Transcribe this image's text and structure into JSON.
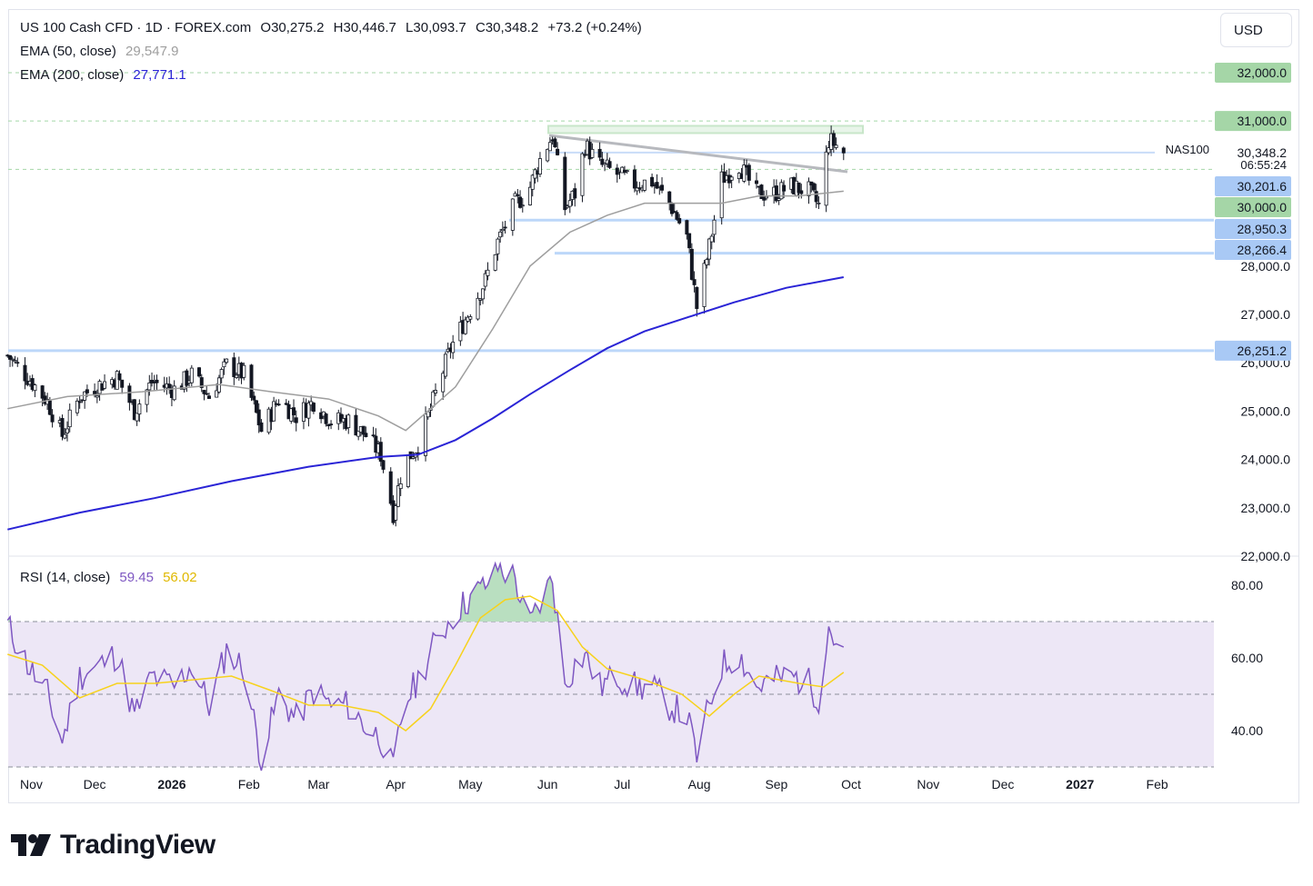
{
  "header": {
    "symbol": "US 100 Cash CFD · 1D · FOREX.com",
    "open": "O30,275.2",
    "high": "H30,446.7",
    "low": "L30,093.7",
    "close": "C30,348.2",
    "change": "+73.2 (+0.24%)"
  },
  "indicators": {
    "ema50_label": "EMA (50, close)",
    "ema50_value": "29,547.9",
    "ema200_label": "EMA (200, close)",
    "ema200_value": "27,771.1",
    "rsi_label": "RSI (14, close)",
    "rsi_value": "59.45",
    "rsi_ma_value": "56.02"
  },
  "currency_button": "USD",
  "brand": "TradingView",
  "colors": {
    "up": "#131722",
    "down": "#131722",
    "ema50": "#9e9e9e",
    "ema200": "#2a24d6",
    "rsi": "#7e57c2",
    "rsi_ma": "#f7d21c",
    "support_line": "#bcd7f9",
    "resistance_box": "#c8e6c9",
    "tag_blue": "#a9c9f5",
    "tag_green": "#a5d6a7",
    "rsi_band": "#ede7f6"
  },
  "chart_data": [
    {
      "type": "candlestick",
      "title": "US 100 Cash CFD · 1D · FOREX.com",
      "ylim": [
        22000,
        32300
      ],
      "y_ticks": [
        "32,000.0",
        "31,000.0",
        "27,000.0",
        "25,000.0",
        "24,000.0",
        "23,000.0",
        "22,000.0"
      ],
      "x_labels": [
        "Nov",
        "Dec",
        "2026",
        "Feb",
        "Mar",
        "Apr",
        "May",
        "Jun",
        "Jul",
        "Aug",
        "Sep",
        "Oct",
        "Nov",
        "Dec",
        "2027",
        "Feb"
      ],
      "close_points": [
        [
          "2025-10-27",
          26150
        ],
        [
          "2025-11-05",
          25650
        ],
        [
          "2025-11-12",
          25200
        ],
        [
          "2025-11-18",
          24500
        ],
        [
          "2025-11-25",
          25300
        ],
        [
          "2025-12-03",
          25550
        ],
        [
          "2025-12-10",
          25700
        ],
        [
          "2025-12-17",
          25000
        ],
        [
          "2025-12-24",
          25600
        ],
        [
          "2026-01-02",
          25450
        ],
        [
          "2026-01-09",
          25750
        ],
        [
          "2026-01-16",
          25300
        ],
        [
          "2026-01-23",
          25950
        ],
        [
          "2026-01-30",
          25750
        ],
        [
          "2026-02-06",
          24600
        ],
        [
          "2026-02-13",
          25250
        ],
        [
          "2026-02-20",
          24900
        ],
        [
          "2026-02-27",
          25200
        ],
        [
          "2026-03-06",
          24800
        ],
        [
          "2026-03-13",
          24800
        ],
        [
          "2026-03-20",
          24500
        ],
        [
          "2026-03-26",
          24100
        ],
        [
          "2026-03-31",
          22900
        ],
        [
          "2026-04-04",
          23900
        ],
        [
          "2026-04-10",
          24300
        ],
        [
          "2026-04-16",
          25200
        ],
        [
          "2026-04-23",
          26300
        ],
        [
          "2026-04-30",
          27000
        ],
        [
          "2026-05-07",
          27700
        ],
        [
          "2026-05-12",
          28500
        ],
        [
          "2026-05-19",
          29300
        ],
        [
          "2026-05-24",
          29500
        ],
        [
          "2026-05-29",
          30200
        ],
        [
          "2026-06-03",
          30700
        ],
        [
          "2026-06-08",
          29200
        ],
        [
          "2026-06-12",
          29500
        ],
        [
          "2026-06-16",
          30500
        ],
        [
          "2026-06-22",
          30100
        ],
        [
          "2026-06-29",
          29900
        ],
        [
          "2026-07-06",
          29700
        ],
        [
          "2026-07-13",
          29750
        ],
        [
          "2026-07-20",
          29300
        ],
        [
          "2026-07-27",
          28600
        ],
        [
          "2026-07-31",
          27150
        ],
        [
          "2026-08-05",
          28400
        ],
        [
          "2026-08-10",
          29800
        ],
        [
          "2026-08-17",
          30100
        ],
        [
          "2026-08-24",
          29500
        ],
        [
          "2026-08-31",
          29500
        ],
        [
          "2026-09-07",
          29650
        ],
        [
          "2026-09-14",
          29550
        ],
        [
          "2026-09-18",
          29250
        ],
        [
          "2026-09-22",
          30600
        ],
        [
          "2026-09-25",
          30500
        ],
        [
          "2026-09-28",
          30348
        ]
      ],
      "ema50": [
        [
          "2025-10-27",
          25050
        ],
        [
          "2025-11-20",
          25300
        ],
        [
          "2025-12-20",
          25400
        ],
        [
          "2026-01-20",
          25550
        ],
        [
          "2026-02-10",
          25400
        ],
        [
          "2026-03-05",
          25250
        ],
        [
          "2026-03-25",
          24900
        ],
        [
          "2026-04-05",
          24600
        ],
        [
          "2026-04-25",
          25500
        ],
        [
          "2026-05-10",
          26700
        ],
        [
          "2026-05-25",
          28000
        ],
        [
          "2026-06-10",
          28700
        ],
        [
          "2026-06-25",
          29050
        ],
        [
          "2026-07-10",
          29300
        ],
        [
          "2026-07-25",
          29300
        ],
        [
          "2026-08-10",
          29300
        ],
        [
          "2026-08-25",
          29450
        ],
        [
          "2026-09-10",
          29450
        ],
        [
          "2026-09-28",
          29548
        ]
      ],
      "ema200": [
        [
          "2025-10-27",
          22550
        ],
        [
          "2025-11-25",
          22900
        ],
        [
          "2025-12-25",
          23200
        ],
        [
          "2026-01-25",
          23550
        ],
        [
          "2026-02-25",
          23850
        ],
        [
          "2026-03-25",
          24050
        ],
        [
          "2026-04-10",
          24100
        ],
        [
          "2026-04-25",
          24400
        ],
        [
          "2026-05-10",
          24850
        ],
        [
          "2026-05-25",
          25350
        ],
        [
          "2026-06-10",
          25850
        ],
        [
          "2026-06-25",
          26300
        ],
        [
          "2026-07-10",
          26650
        ],
        [
          "2026-07-28",
          26950
        ],
        [
          "2026-08-15",
          27250
        ],
        [
          "2026-09-05",
          27550
        ],
        [
          "2026-09-28",
          27771
        ]
      ],
      "lines": {
        "support_1": 26251.2,
        "support_2": 28266.4,
        "support_3": 28950.3,
        "current": 30348.2,
        "resistance": 31000.0
      },
      "price_tags": [
        {
          "value": 32000.0,
          "label": "32,000.0",
          "kind": "green"
        },
        {
          "value": 31000.0,
          "label": "31,000.0",
          "kind": "green"
        },
        {
          "value": 30348.2,
          "label": "30,348.2",
          "kind": "plain"
        },
        {
          "value": 30201.6,
          "label": "30,201.6",
          "kind": "blue"
        },
        {
          "value": 30000.0,
          "label": "30,000.0",
          "kind": "green"
        },
        {
          "value": 28950.3,
          "label": "28,950.3",
          "kind": "blue"
        },
        {
          "value": 28266.4,
          "label": "28,266.4",
          "kind": "blue"
        },
        {
          "value": 26251.2,
          "label": "26,251.2",
          "kind": "blue"
        }
      ],
      "symbol_tag": "NAS100",
      "countdown": "06:55:24"
    },
    {
      "type": "line",
      "title": "RSI (14, close)",
      "ylim": [
        28,
        88
      ],
      "bands": [
        30,
        50,
        70
      ],
      "y_ticks": [
        "80.00",
        "60.00",
        "40.00"
      ],
      "rsi": [
        [
          "2025-10-27",
          69
        ],
        [
          "2025-11-05",
          57
        ],
        [
          "2025-11-12",
          50
        ],
        [
          "2025-11-18",
          37
        ],
        [
          "2025-11-25",
          55
        ],
        [
          "2025-12-03",
          58
        ],
        [
          "2025-12-10",
          61
        ],
        [
          "2025-12-17",
          44
        ],
        [
          "2025-12-24",
          55
        ],
        [
          "2026-01-02",
          52
        ],
        [
          "2026-01-09",
          58
        ],
        [
          "2026-01-16",
          47
        ],
        [
          "2026-01-23",
          62
        ],
        [
          "2026-01-30",
          57
        ],
        [
          "2026-02-06",
          32
        ],
        [
          "2026-02-13",
          50
        ],
        [
          "2026-02-20",
          43
        ],
        [
          "2026-02-27",
          51
        ],
        [
          "2026-03-06",
          47
        ],
        [
          "2026-03-13",
          47
        ],
        [
          "2026-03-20",
          41
        ],
        [
          "2026-03-26",
          38
        ],
        [
          "2026-03-31",
          29
        ],
        [
          "2026-04-04",
          47
        ],
        [
          "2026-04-10",
          54
        ],
        [
          "2026-04-16",
          63
        ],
        [
          "2026-04-23",
          71
        ],
        [
          "2026-04-30",
          76
        ],
        [
          "2026-05-07",
          80
        ],
        [
          "2026-05-12",
          85
        ],
        [
          "2026-05-19",
          82
        ],
        [
          "2026-05-24",
          68
        ],
        [
          "2026-05-29",
          75
        ],
        [
          "2026-06-03",
          82
        ],
        [
          "2026-06-08",
          53
        ],
        [
          "2026-06-12",
          58
        ],
        [
          "2026-06-16",
          61
        ],
        [
          "2026-06-22",
          52
        ],
        [
          "2026-06-29",
          55
        ],
        [
          "2026-07-06",
          52
        ],
        [
          "2026-07-13",
          52
        ],
        [
          "2026-07-20",
          47
        ],
        [
          "2026-07-27",
          44
        ],
        [
          "2026-07-31",
          33
        ],
        [
          "2026-08-05",
          47
        ],
        [
          "2026-08-10",
          58
        ],
        [
          "2026-08-17",
          61
        ],
        [
          "2026-08-24",
          52
        ],
        [
          "2026-08-31",
          54
        ],
        [
          "2026-09-07",
          55
        ],
        [
          "2026-09-14",
          53
        ],
        [
          "2026-09-18",
          49
        ],
        [
          "2026-09-22",
          69
        ],
        [
          "2026-09-25",
          64
        ],
        [
          "2026-09-28",
          59.45
        ]
      ],
      "rsi_ma": [
        [
          "2025-10-27",
          61
        ],
        [
          "2025-11-10",
          58
        ],
        [
          "2025-11-25",
          49
        ],
        [
          "2025-12-10",
          53
        ],
        [
          "2025-12-25",
          53
        ],
        [
          "2026-01-10",
          54
        ],
        [
          "2026-01-25",
          55
        ],
        [
          "2026-02-10",
          51
        ],
        [
          "2026-02-25",
          47
        ],
        [
          "2026-03-10",
          47
        ],
        [
          "2026-03-25",
          45
        ],
        [
          "2026-04-05",
          40
        ],
        [
          "2026-04-15",
          46
        ],
        [
          "2026-04-25",
          58
        ],
        [
          "2026-05-05",
          71
        ],
        [
          "2026-05-15",
          76
        ],
        [
          "2026-05-25",
          77
        ],
        [
          "2026-06-05",
          73
        ],
        [
          "2026-06-15",
          63
        ],
        [
          "2026-06-25",
          57
        ],
        [
          "2026-07-10",
          54
        ],
        [
          "2026-07-25",
          50
        ],
        [
          "2026-08-05",
          44
        ],
        [
          "2026-08-15",
          50
        ],
        [
          "2026-08-25",
          55
        ],
        [
          "2026-09-10",
          53
        ],
        [
          "2026-09-20",
          52
        ],
        [
          "2026-09-28",
          56.02
        ]
      ]
    }
  ]
}
